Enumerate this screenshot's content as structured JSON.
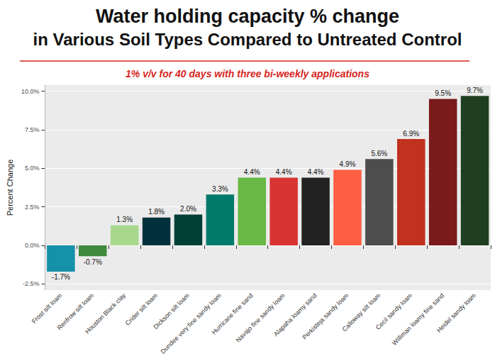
{
  "chart_data": {
    "type": "bar",
    "title": [
      "Water holding capacity % change",
      "in Various Soil Types Compared to Untreated Control"
    ],
    "subtitle": "1% v/v for 40 days with three bi-weekly applications",
    "y_label": "Percent Change",
    "categories": [
      "Frost silt loam",
      "Renfrow silt loam",
      "Houston Black clay",
      "Crider silt loam",
      "Dickson silt loam",
      "Dundee very fine sandy loam",
      "Hurricane fine sand",
      "Navajo fine sandy loam",
      "Alapaha loamy sand",
      "Perkisteja sandy loam",
      "Calloway silt loam",
      "Cecil sandy loam",
      "Williman loamy fine sand",
      "Heidel sandy loam"
    ],
    "values": [
      -1.7,
      -0.7,
      1.3,
      1.8,
      2.0,
      3.3,
      4.4,
      4.4,
      4.4,
      4.9,
      5.6,
      6.9,
      9.5,
      9.7
    ],
    "value_labels": [
      "-1.7%",
      "-0.7%",
      "1.3%",
      "1.8%",
      "2.0%",
      "3.3%",
      "4.4%",
      "4.4%",
      "4.4%",
      "4.9%",
      "5.6%",
      "6.9%",
      "9.5%",
      "9.7%"
    ],
    "colors": [
      "#1591aa",
      "#3f8a3c",
      "#a8d88c",
      "#00313d",
      "#003f36",
      "#007a6b",
      "#6ab845",
      "#d93434",
      "#222222",
      "#ff5e42",
      "#4d4d4d",
      "#c0321e",
      "#7a1a1a",
      "#1f3f20"
    ],
    "ylim": [
      -2.9,
      10.4
    ],
    "yticks": [
      {
        "value": -2.5,
        "label": "-2.5%"
      },
      {
        "value": 0,
        "label": "0.0%"
      },
      {
        "value": 2.5,
        "label": "2.5%"
      },
      {
        "value": 5,
        "label": "5.0%"
      },
      {
        "value": 7.5,
        "label": "7.5%"
      },
      {
        "value": 10,
        "label": "10.0%"
      }
    ],
    "grid": true,
    "data_labels": true
  }
}
